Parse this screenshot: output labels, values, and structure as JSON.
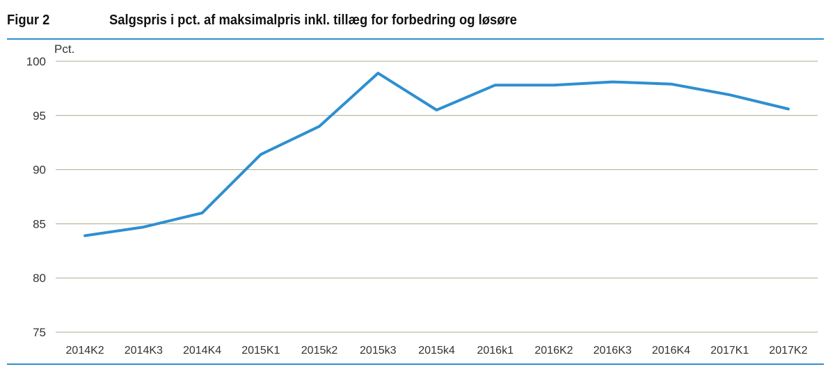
{
  "figure": {
    "label": "Figur 2",
    "title": "Salgspris i pct. af maksimalpris inkl. tillæg for forbedring og løsøre"
  },
  "colors": {
    "line": "#2E8FD0",
    "rule": "#2E8FD0",
    "grid": "#A9A98A",
    "text": "#333333"
  },
  "chart_data": {
    "type": "line",
    "title": "Salgspris i pct. af maksimalpris inkl. tillæg for forbedring og løsøre",
    "ylabel": "Pct.",
    "xlabel": "",
    "categories": [
      "2014K2",
      "2014K3",
      "2014K4",
      "2015K1",
      "2015k2",
      "2015k3",
      "2015k4",
      "2016k1",
      "2016K2",
      "2016K3",
      "2016K4",
      "2017K1",
      "2017K2"
    ],
    "series": [
      {
        "values": [
          83.9,
          84.7,
          86.0,
          91.4,
          94.0,
          98.9,
          95.5,
          97.8,
          97.8,
          98.1,
          97.9,
          96.9,
          95.6
        ]
      }
    ],
    "ylim": [
      75,
      100
    ],
    "yticks": [
      75,
      80,
      85,
      90,
      95,
      100
    ],
    "grid": true,
    "legend": "none"
  }
}
